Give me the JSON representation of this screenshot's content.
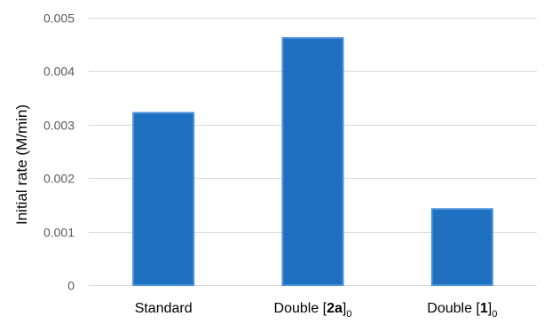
{
  "chart_data": {
    "type": "bar",
    "title": "",
    "ylabel": "Initial rate (M/min)",
    "xlabel": "",
    "ylim": [
      0,
      0.005
    ],
    "yticks": [
      0,
      0.001,
      0.002,
      0.003,
      0.004,
      0.005
    ],
    "ytick_labels": [
      "0",
      "0.001",
      "0.002",
      "0.003",
      "0.004",
      "0.005"
    ],
    "grid": true,
    "legend": "none",
    "categories": [
      {
        "label": "Standard",
        "parts": [
          {
            "t": "Standard"
          }
        ]
      },
      {
        "label": "Double [2a]0",
        "parts": [
          {
            "t": "Double ["
          },
          {
            "t": "2a",
            "b": true
          },
          {
            "t": "]"
          },
          {
            "t": "0",
            "sub": true
          }
        ]
      },
      {
        "label": "Double [1]0",
        "parts": [
          {
            "t": "Double ["
          },
          {
            "t": "1",
            "b": true
          },
          {
            "t": "]"
          },
          {
            "t": "0",
            "sub": true
          }
        ]
      }
    ],
    "values": [
      0.00322,
      0.00462,
      0.00142
    ],
    "bar_color": "#1f70c1",
    "bar_edge_color": "#4a90d9"
  }
}
